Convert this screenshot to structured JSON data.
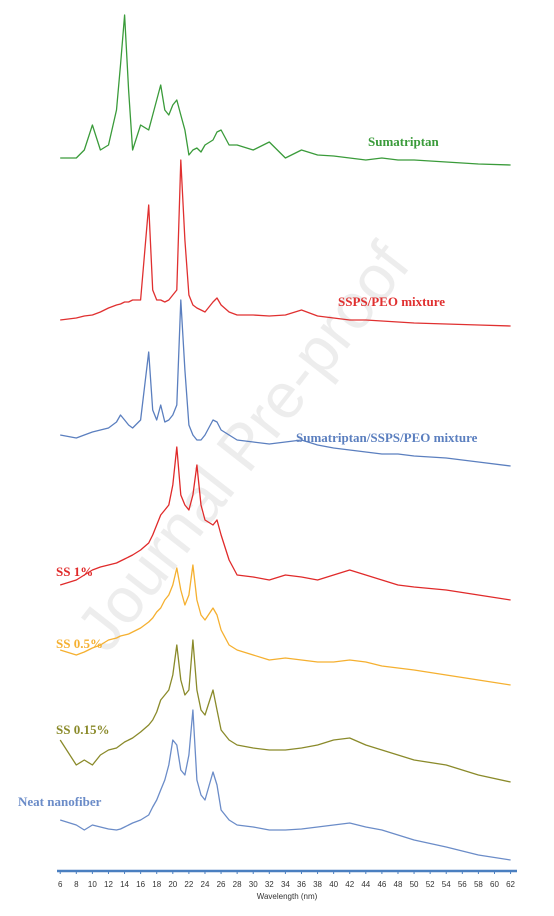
{
  "chart_data": {
    "type": "line",
    "watermark": "Journal Pre-proof",
    "x_label": "Wavelength (nm)",
    "xlim": [
      5.6,
      62.8
    ],
    "xticks": [
      6,
      8,
      10,
      12,
      14,
      16,
      18,
      20,
      22,
      24,
      26,
      28,
      30,
      32,
      34,
      36,
      38,
      40,
      42,
      44,
      46,
      48,
      50,
      52,
      54,
      56,
      58,
      60,
      62
    ],
    "x": [
      6,
      8,
      9,
      10,
      11,
      12,
      13,
      13.5,
      14,
      14.5,
      15,
      16,
      17,
      17.5,
      18,
      18.5,
      19,
      19.5,
      20,
      20.5,
      21,
      21.5,
      22,
      22.5,
      23,
      23.5,
      24,
      25,
      25.5,
      26,
      27,
      28,
      30,
      32,
      34,
      36,
      38,
      40,
      42,
      44,
      46,
      48,
      50,
      54,
      58,
      62
    ],
    "series": [
      {
        "name": "Sumatriptan",
        "color": "#3a9b3a",
        "values": [
          12,
          12,
          20,
          45,
          20,
          25,
          60,
          105,
          155,
          80,
          20,
          45,
          40,
          55,
          70,
          85,
          60,
          55,
          65,
          70,
          55,
          40,
          15,
          20,
          22,
          18,
          25,
          30,
          38,
          40,
          25,
          25,
          20,
          28,
          12,
          20,
          15,
          14,
          12,
          10,
          12,
          10,
          10,
          8,
          6,
          5
        ]
      },
      {
        "name": "SSPS/PEO mixture",
        "color": "#e03030",
        "values": [
          10,
          12,
          14,
          15,
          18,
          22,
          25,
          26,
          28,
          28,
          30,
          30,
          125,
          40,
          30,
          30,
          28,
          30,
          35,
          40,
          170,
          90,
          35,
          25,
          22,
          20,
          18,
          28,
          32,
          25,
          18,
          15,
          15,
          14,
          15,
          20,
          14,
          12,
          10,
          10,
          9,
          8,
          7,
          6,
          5,
          4
        ]
      },
      {
        "name": "Sumatriptan/SSPS/PEO mixture",
        "color": "#5b7fbf",
        "values": [
          35,
          32,
          35,
          38,
          40,
          42,
          48,
          55,
          50,
          45,
          42,
          50,
          118,
          60,
          50,
          65,
          48,
          50,
          55,
          65,
          170,
          100,
          45,
          35,
          30,
          30,
          35,
          50,
          48,
          40,
          35,
          30,
          28,
          26,
          28,
          30,
          25,
          22,
          20,
          18,
          16,
          16,
          14,
          12,
          8,
          4
        ]
      },
      {
        "name": "SS 1%",
        "color": "#e02a2a",
        "values": [
          20,
          25,
          30,
          35,
          38,
          40,
          42,
          44,
          46,
          48,
          50,
          55,
          62,
          70,
          80,
          90,
          95,
          100,
          120,
          158,
          110,
          100,
          95,
          110,
          140,
          100,
          85,
          80,
          85,
          70,
          45,
          30,
          28,
          25,
          30,
          28,
          25,
          30,
          35,
          30,
          25,
          20,
          18,
          15,
          10,
          5
        ]
      },
      {
        "name": "SS 0.5%",
        "color": "#f5b030",
        "values": [
          40,
          35,
          38,
          42,
          45,
          50,
          52,
          54,
          55,
          56,
          58,
          62,
          68,
          72,
          78,
          82,
          90,
          95,
          105,
          122,
          100,
          85,
          95,
          125,
          90,
          75,
          70,
          82,
          75,
          60,
          45,
          40,
          35,
          30,
          32,
          30,
          28,
          28,
          30,
          28,
          24,
          22,
          20,
          15,
          10,
          5
        ]
      },
      {
        "name": "SS 0.15%",
        "color": "#8a8a2a",
        "values": [
          50,
          25,
          30,
          25,
          35,
          40,
          42,
          45,
          48,
          50,
          52,
          58,
          65,
          70,
          78,
          90,
          95,
          100,
          115,
          145,
          110,
          95,
          100,
          150,
          100,
          80,
          75,
          100,
          80,
          60,
          50,
          45,
          42,
          40,
          40,
          42,
          45,
          50,
          52,
          45,
          40,
          35,
          30,
          25,
          15,
          8
        ]
      },
      {
        "name": "Neat nanofiber",
        "color": "#6b8cc8",
        "values": [
          45,
          40,
          35,
          40,
          38,
          36,
          35,
          36,
          38,
          40,
          42,
          45,
          50,
          58,
          65,
          75,
          85,
          100,
          125,
          120,
          95,
          90,
          110,
          155,
          85,
          70,
          65,
          93,
          80,
          55,
          45,
          40,
          38,
          35,
          35,
          36,
          38,
          40,
          42,
          38,
          35,
          30,
          25,
          18,
          10,
          5
        ]
      }
    ]
  }
}
